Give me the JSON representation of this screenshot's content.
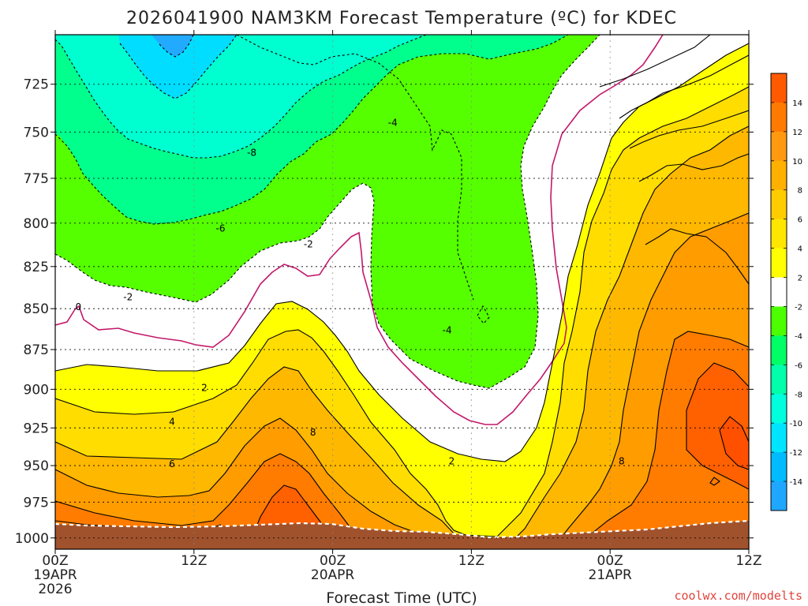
{
  "chart_data": {
    "type": "contour",
    "title": "2026041900 NAM3KM Forecast Temperature (ºC) for KDEC",
    "xlabel": "Forecast Time (UTC)",
    "ylabel": "",
    "credit": "coolwx.com/modelts",
    "x_ticks": [
      {
        "hour": 0,
        "lines": [
          "00Z",
          "19APR",
          "2026"
        ]
      },
      {
        "hour": 12,
        "lines": [
          "12Z"
        ]
      },
      {
        "hour": 24,
        "lines": [
          "00Z",
          "20APR"
        ]
      },
      {
        "hour": 36,
        "lines": [
          "12Z"
        ]
      },
      {
        "hour": 48,
        "lines": [
          "00Z",
          "21APR"
        ]
      },
      {
        "hour": 60,
        "lines": [
          "12Z"
        ]
      }
    ],
    "xlim": [
      0,
      60
    ],
    "y_ticks": [
      725,
      750,
      775,
      800,
      825,
      850,
      875,
      900,
      925,
      950,
      975,
      1000
    ],
    "ylim_hpa": [
      700,
      1008
    ],
    "contour_labels": [
      {
        "text": "-4",
        "hour": 29.2,
        "hpa": 745
      },
      {
        "text": "-8",
        "hour": 17.0,
        "hpa": 761
      },
      {
        "text": "-6",
        "hour": 14.3,
        "hpa": 803
      },
      {
        "text": "-2",
        "hour": 21.9,
        "hpa": 812
      },
      {
        "text": "-2",
        "hour": 6.3,
        "hpa": 843
      },
      {
        "text": "0",
        "hour": 2.0,
        "hpa": 849
      },
      {
        "text": "-4",
        "hour": 33.9,
        "hpa": 863
      },
      {
        "text": "2",
        "hour": 12.9,
        "hpa": 899
      },
      {
        "text": "4",
        "hour": 10.1,
        "hpa": 921
      },
      {
        "text": "8",
        "hour": 22.3,
        "hpa": 928
      },
      {
        "text": "6",
        "hour": 10.1,
        "hpa": 949
      },
      {
        "text": "2",
        "hour": 34.3,
        "hpa": 947
      },
      {
        "text": "8",
        "hour": 49.0,
        "hpa": 947
      }
    ],
    "colorbar": {
      "labels": [
        "14",
        "12",
        "10",
        "8",
        "6",
        "4",
        "2",
        "-2",
        "-4",
        "-6",
        "-8",
        "-10",
        "-12",
        "-14"
      ],
      "colors": [
        "#ff5a00",
        "#ff7a00",
        "#ff9a10",
        "#ffb000",
        "#ffcc00",
        "#ffe600",
        "#ffff00",
        "#ffffff",
        "#4cff00",
        "#00ff66",
        "#00ffaa",
        "#00ffdd",
        "#00e5ff",
        "#00bbff",
        "#1fa7ff"
      ]
    },
    "fill_colors": {
      "ground": "#a0522d",
      "cold_light": "#00ffd0",
      "cold_mid": "#00ff8c",
      "cold_cyan": "#00ddff",
      "cold_blue": "#22aaff",
      "green": "#55ff00",
      "near_zero": "#ffffff",
      "warm_yellow": "#ffff00",
      "warm_gold": "#ffdd00",
      "warm_amber": "#ffb800",
      "warm_orange": "#ff9c00",
      "warm_deep": "#ff7c00",
      "warm_hot": "#ff6000",
      "zero_line": "#c2186b"
    }
  }
}
